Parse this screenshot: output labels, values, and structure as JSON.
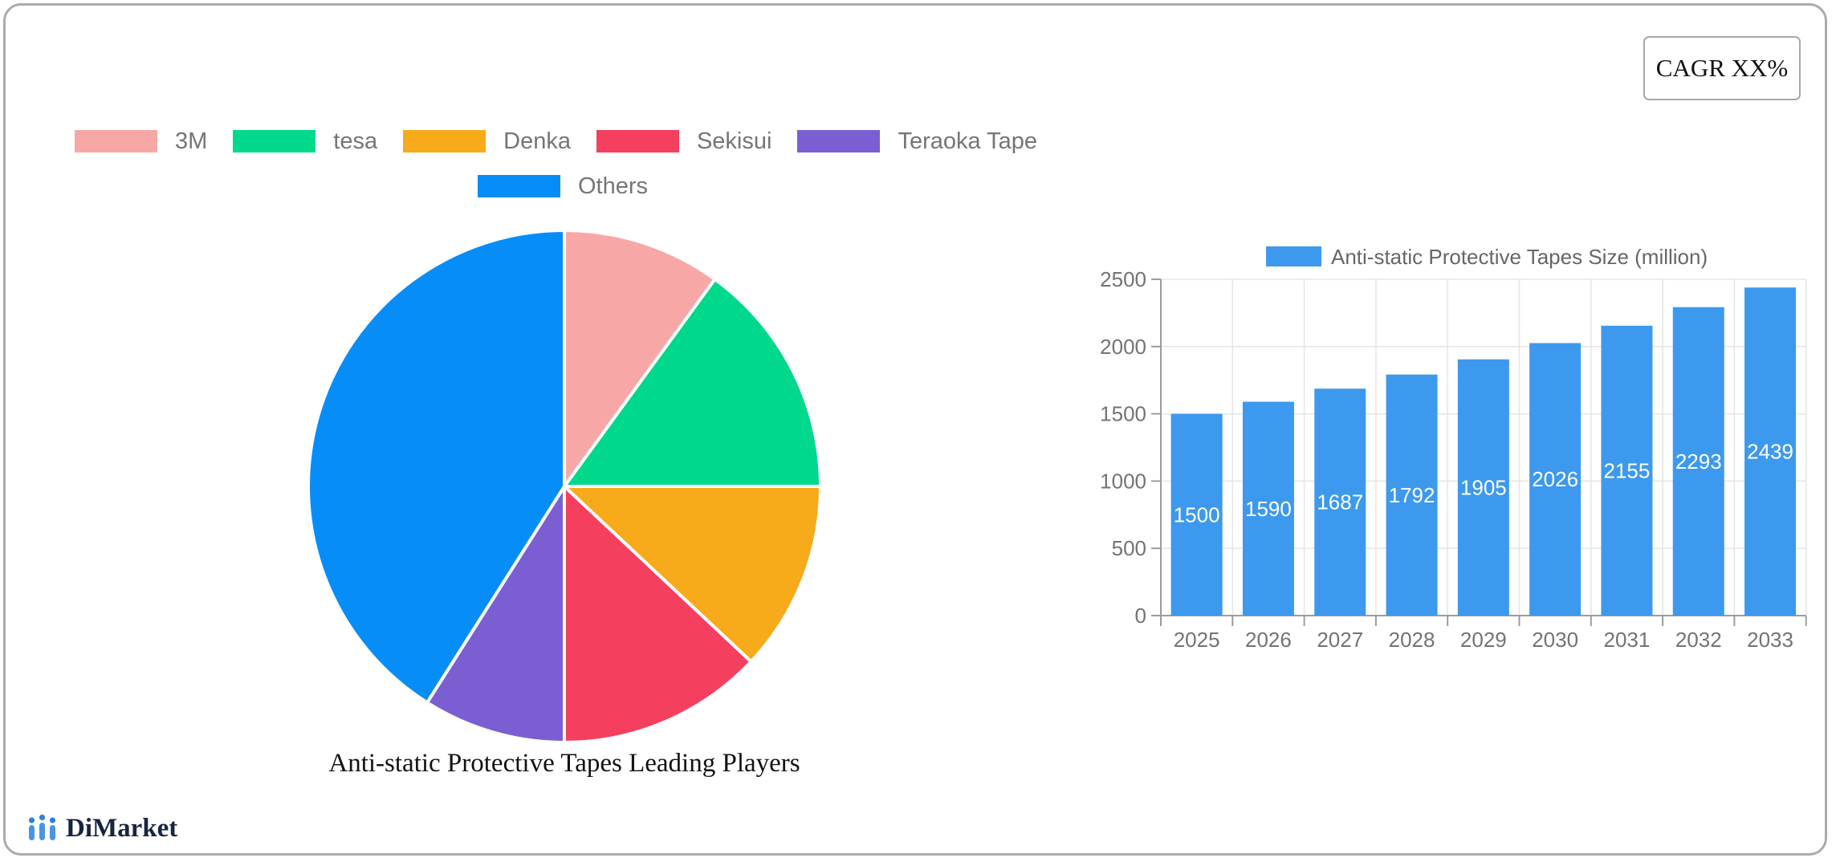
{
  "frame": {
    "cagr_label": "CAGR XX%"
  },
  "brand": {
    "name": "DiMarket"
  },
  "chart_data": [
    {
      "type": "pie",
      "title": "Anti-static Protective Tapes Leading Players",
      "legend_position": "top",
      "start_angle_deg": 0,
      "direction": "clockwise",
      "slices": [
        {
          "label": "3M",
          "value": 10,
          "color": "#F7A8A6"
        },
        {
          "label": "tesa",
          "value": 15,
          "color": "#00D98C"
        },
        {
          "label": "Denka",
          "value": 12,
          "color": "#F7AB1B"
        },
        {
          "label": "Sekisui",
          "value": 13,
          "color": "#F43F5E"
        },
        {
          "label": "Teraoka Tape",
          "value": 9,
          "color": "#7B5FD2"
        },
        {
          "label": "Others",
          "value": 41,
          "color": "#078DF8"
        }
      ]
    },
    {
      "type": "bar",
      "legend": "Anti-static Protective Tapes Size (million)",
      "categories": [
        "2025",
        "2026",
        "2027",
        "2028",
        "2029",
        "2030",
        "2031",
        "2032",
        "2033"
      ],
      "values": [
        1500,
        1590,
        1687,
        1792,
        1905,
        2026,
        2155,
        2293,
        2439
      ],
      "bar_color": "#3D99ED",
      "value_label_color": "#FFFFFF",
      "axis_label_color": "#737373",
      "grid_color": "#E5E5E5",
      "axis_line_color": "#9C9C9C",
      "ylim": [
        0,
        2500
      ],
      "yticks": [
        0,
        500,
        1000,
        1500,
        2000,
        2500
      ],
      "grid": true,
      "legend_position": "top"
    }
  ]
}
